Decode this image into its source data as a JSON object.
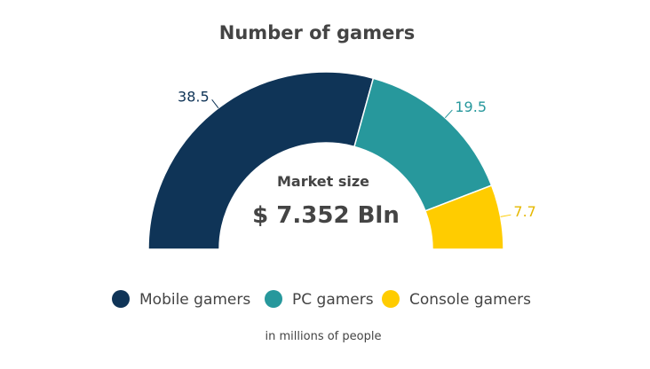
{
  "chart_data": {
    "type": "pie",
    "title": "Number of gamers",
    "center": {
      "label": "Market size",
      "value": "$ 7.352 Bln"
    },
    "series": [
      {
        "name": "Mobile gamers",
        "value": 38.5,
        "label": "38.5",
        "color": "#0f3457"
      },
      {
        "name": "PC gamers",
        "value": 19.5,
        "label": "19.5",
        "color": "#27989c"
      },
      {
        "name": "Console gamers",
        "value": 7.7,
        "label": "7.7",
        "color": "#ffcc00"
      }
    ],
    "note": "in millions of people"
  }
}
